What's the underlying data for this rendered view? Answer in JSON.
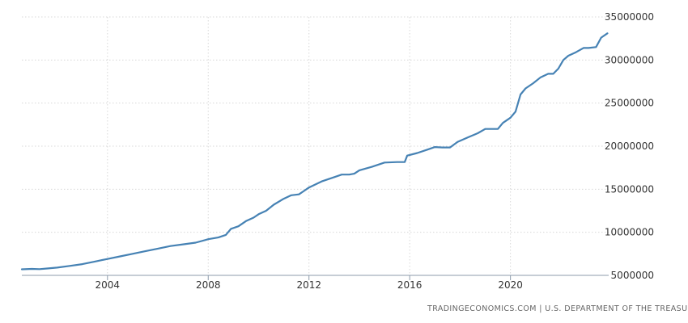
{
  "chart_data": {
    "type": "line",
    "title": "",
    "xlabel": "",
    "ylabel": "",
    "xlim": [
      2000.6,
      2023.9
    ],
    "ylim": [
      5000000,
      35000000
    ],
    "x_ticks": [
      "2004",
      "2008",
      "2012",
      "2016",
      "2020"
    ],
    "y_ticks": [
      "5000000",
      "10000000",
      "15000000",
      "20000000",
      "25000000",
      "30000000",
      "35000000"
    ],
    "grid": true,
    "legend": "none",
    "series": [
      {
        "color": "#4682b4",
        "points": [
          [
            2000.6,
            5700000
          ],
          [
            2001.0,
            5750000
          ],
          [
            2001.3,
            5720000
          ],
          [
            2001.6,
            5800000
          ],
          [
            2002.0,
            5900000
          ],
          [
            2002.5,
            6100000
          ],
          [
            2003.0,
            6300000
          ],
          [
            2003.5,
            6600000
          ],
          [
            2004.0,
            6900000
          ],
          [
            2004.5,
            7200000
          ],
          [
            2005.0,
            7500000
          ],
          [
            2005.5,
            7800000
          ],
          [
            2006.0,
            8100000
          ],
          [
            2006.5,
            8400000
          ],
          [
            2007.0,
            8600000
          ],
          [
            2007.5,
            8800000
          ],
          [
            2008.0,
            9200000
          ],
          [
            2008.4,
            9400000
          ],
          [
            2008.7,
            9700000
          ],
          [
            2008.9,
            10400000
          ],
          [
            2009.2,
            10700000
          ],
          [
            2009.5,
            11300000
          ],
          [
            2009.8,
            11700000
          ],
          [
            2010.0,
            12100000
          ],
          [
            2010.3,
            12500000
          ],
          [
            2010.6,
            13200000
          ],
          [
            2011.0,
            13900000
          ],
          [
            2011.3,
            14300000
          ],
          [
            2011.6,
            14400000
          ],
          [
            2011.8,
            14800000
          ],
          [
            2012.0,
            15200000
          ],
          [
            2012.5,
            15900000
          ],
          [
            2013.0,
            16400000
          ],
          [
            2013.3,
            16700000
          ],
          [
            2013.6,
            16700000
          ],
          [
            2013.8,
            16800000
          ],
          [
            2014.0,
            17200000
          ],
          [
            2014.5,
            17600000
          ],
          [
            2015.0,
            18100000
          ],
          [
            2015.5,
            18150000
          ],
          [
            2015.8,
            18150000
          ],
          [
            2015.9,
            18900000
          ],
          [
            2016.3,
            19200000
          ],
          [
            2016.7,
            19600000
          ],
          [
            2017.0,
            19900000
          ],
          [
            2017.3,
            19850000
          ],
          [
            2017.6,
            19850000
          ],
          [
            2017.9,
            20500000
          ],
          [
            2018.3,
            21000000
          ],
          [
            2018.7,
            21500000
          ],
          [
            2019.0,
            22000000
          ],
          [
            2019.3,
            22000000
          ],
          [
            2019.5,
            22000000
          ],
          [
            2019.7,
            22700000
          ],
          [
            2020.0,
            23300000
          ],
          [
            2020.2,
            24000000
          ],
          [
            2020.4,
            26000000
          ],
          [
            2020.6,
            26700000
          ],
          [
            2020.9,
            27300000
          ],
          [
            2021.2,
            28000000
          ],
          [
            2021.5,
            28400000
          ],
          [
            2021.7,
            28400000
          ],
          [
            2021.9,
            29000000
          ],
          [
            2022.1,
            30000000
          ],
          [
            2022.3,
            30500000
          ],
          [
            2022.6,
            30900000
          ],
          [
            2022.9,
            31400000
          ],
          [
            2023.1,
            31400000
          ],
          [
            2023.4,
            31500000
          ],
          [
            2023.6,
            32600000
          ],
          [
            2023.85,
            33100000
          ]
        ]
      }
    ]
  },
  "source": "TRADINGECONOMICS.COM  |  U.S. DEPARTMENT OF THE TREASURY",
  "colors": {
    "line": "#4682b4",
    "grid": "#d8d8d8",
    "axis": "#8c9bab",
    "text": "#333333"
  }
}
